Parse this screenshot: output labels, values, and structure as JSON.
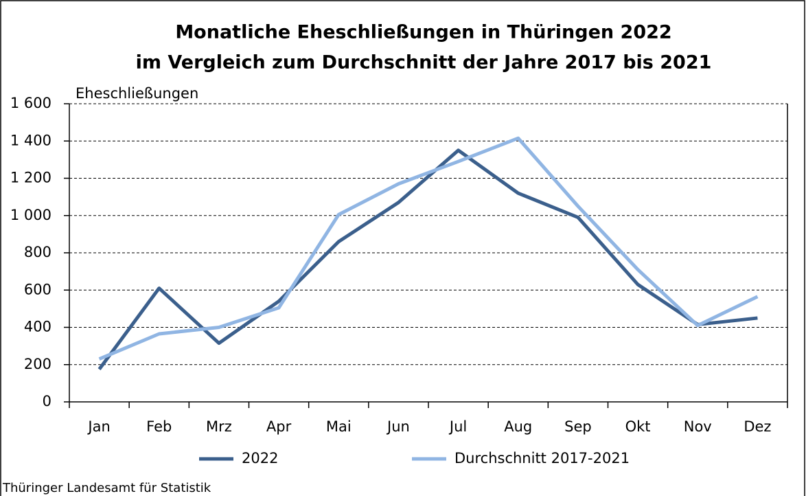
{
  "chart_data": {
    "type": "line",
    "title": [
      "Monatliche Eheschließungen in Thüringen 2022",
      "im Vergleich zum Durchschnitt der Jahre 2017 bis 2021"
    ],
    "y_label": "Eheschließungen",
    "source": "Thüringer Landesamt für Statistik",
    "categories": [
      "Jan",
      "Feb",
      "Mrz",
      "Apr",
      "Mai",
      "Jun",
      "Jul",
      "Aug",
      "Sep",
      "Okt",
      "Nov",
      "Dez"
    ],
    "series": [
      {
        "name": "2022",
        "color": "#3b5f8c",
        "values": [
          175,
          610,
          315,
          540,
          860,
          1070,
          1350,
          1120,
          990,
          630,
          415,
          450
        ]
      },
      {
        "name": "Durchschnitt 2017-2021",
        "color": "#90b5e3",
        "values": [
          230,
          365,
          400,
          505,
          1005,
          1170,
          1290,
          1415,
          1050,
          710,
          410,
          565
        ]
      }
    ],
    "ylim": [
      0,
      1600
    ],
    "yticks": [
      0,
      200,
      400,
      600,
      800,
      {
        "value": 1000,
        "label": "1 000"
      },
      {
        "value": 1200,
        "label": "1 200"
      },
      {
        "value": 1400,
        "label": "1 400"
      },
      {
        "value": 1600,
        "label": "1 600"
      }
    ],
    "grid": true
  }
}
